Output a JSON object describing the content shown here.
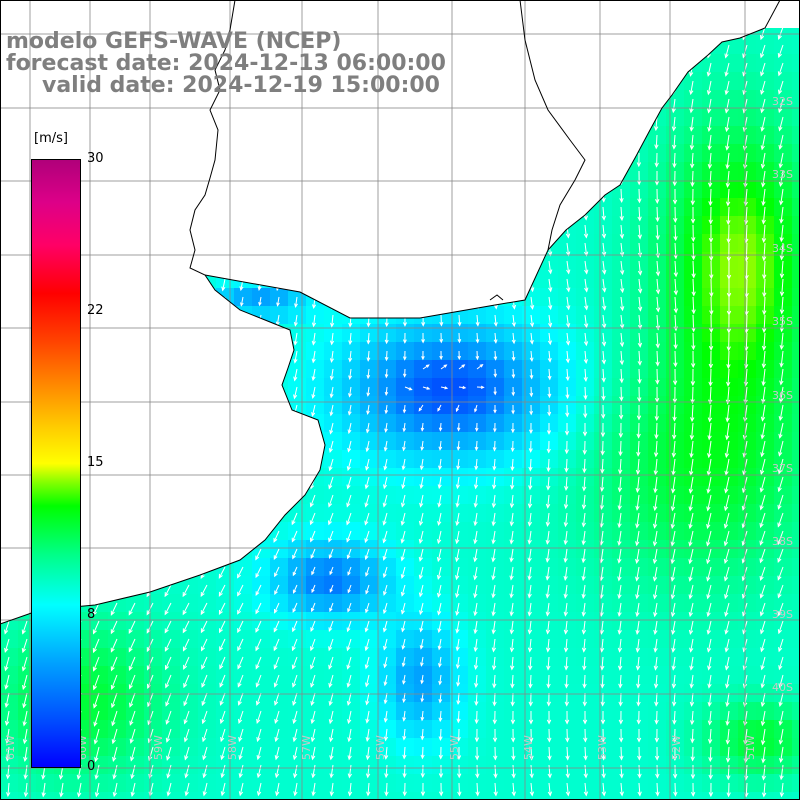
{
  "title": {
    "line1": "modelo GEFS-WAVE (NCEP)",
    "line2": "forecast date: 2024-12-13 06:00:00",
    "line3": "valid date: 2024-12-19 15:00:00"
  },
  "colorbar": {
    "unit": "[m/s]",
    "ticks": [
      "30",
      "22",
      "15",
      "8",
      "0"
    ]
  },
  "map": {
    "lon_labels": [
      "61W",
      "60W",
      "59W",
      "58W",
      "57W",
      "56W",
      "55W",
      "54W",
      "53W",
      "52W",
      "51W"
    ],
    "lat_labels": [
      "32S",
      "33S",
      "34S",
      "35S",
      "36S",
      "37S",
      "38S",
      "39S",
      "40S"
    ],
    "colors": {
      "ocean_low": "#0000ff",
      "ocean_mid": "#00e0ff",
      "ocean_high": "#00ff00",
      "land": "#ffffff",
      "grid": "#888888",
      "coast": "#000000",
      "arrow": "#ffffff"
    }
  }
}
